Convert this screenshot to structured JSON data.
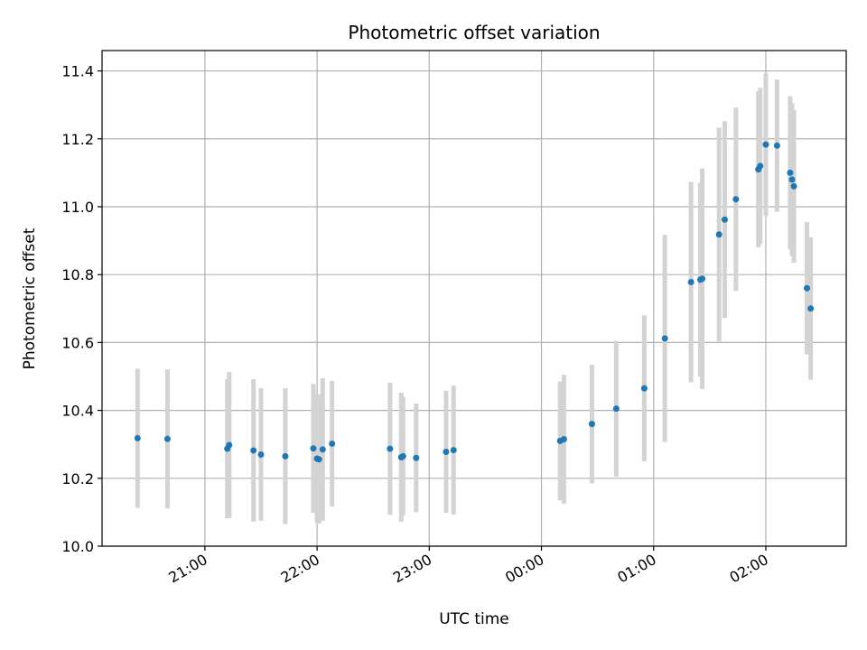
{
  "chart_data": {
    "type": "scatter",
    "title": "Photometric offset variation",
    "xlabel": "UTC time",
    "ylabel": "Photometric offset",
    "x_tick_labels": [
      "21:00",
      "22:00",
      "23:00",
      "00:00",
      "01:00",
      "02:00"
    ],
    "x_tick_times": [
      "2000-01-01T21:00",
      "2000-01-01T22:00",
      "2000-01-01T23:00",
      "2000-01-02T00:00",
      "2000-01-02T01:00",
      "2000-01-02T02:00"
    ],
    "xlim": [
      "2000-01-01T20:05",
      "2000-01-02T02:43"
    ],
    "y_ticks": [
      10.0,
      10.2,
      10.4,
      10.6,
      10.8,
      11.0,
      11.2,
      11.4
    ],
    "y_tick_labels": [
      "10.0",
      "10.2",
      "10.4",
      "10.6",
      "10.8",
      "11.0",
      "11.2",
      "11.4"
    ],
    "ylim": [
      10.0,
      11.46
    ],
    "grid": true,
    "point_color": "#1f77b4",
    "errorbar_color": "#d3d3d3",
    "points": [
      {
        "time": "2000-01-01T20:24",
        "y": 10.318,
        "err": 0.205
      },
      {
        "time": "2000-01-01T20:40",
        "y": 10.316,
        "err": 0.205
      },
      {
        "time": "2000-01-01T21:12",
        "y": 10.287,
        "err": 0.205
      },
      {
        "time": "2000-01-01T21:13",
        "y": 10.298,
        "err": 0.215
      },
      {
        "time": "2000-01-01T21:26",
        "y": 10.282,
        "err": 0.21
      },
      {
        "time": "2000-01-01T21:30",
        "y": 10.27,
        "err": 0.195
      },
      {
        "time": "2000-01-01T21:43",
        "y": 10.265,
        "err": 0.2
      },
      {
        "time": "2000-01-01T21:58",
        "y": 10.288,
        "err": 0.19
      },
      {
        "time": "2000-01-01T22:00",
        "y": 10.258,
        "err": 0.19
      },
      {
        "time": "2000-01-01T22:01",
        "y": 10.256,
        "err": 0.19
      },
      {
        "time": "2000-01-01T22:03",
        "y": 10.285,
        "err": 0.21
      },
      {
        "time": "2000-01-01T22:08",
        "y": 10.302,
        "err": 0.185
      },
      {
        "time": "2000-01-01T22:39",
        "y": 10.287,
        "err": 0.195
      },
      {
        "time": "2000-01-01T22:45",
        "y": 10.262,
        "err": 0.19
      },
      {
        "time": "2000-01-01T22:46",
        "y": 10.265,
        "err": 0.175
      },
      {
        "time": "2000-01-01T22:53",
        "y": 10.26,
        "err": 0.16
      },
      {
        "time": "2000-01-01T23:09",
        "y": 10.278,
        "err": 0.18
      },
      {
        "time": "2000-01-01T23:13",
        "y": 10.283,
        "err": 0.19
      },
      {
        "time": "2000-01-02T00:10",
        "y": 10.31,
        "err": 0.175
      },
      {
        "time": "2000-01-02T00:12",
        "y": 10.315,
        "err": 0.19
      },
      {
        "time": "2000-01-02T00:27",
        "y": 10.36,
        "err": 0.175
      },
      {
        "time": "2000-01-02T00:40",
        "y": 10.405,
        "err": 0.2
      },
      {
        "time": "2000-01-02T00:55",
        "y": 10.465,
        "err": 0.215
      },
      {
        "time": "2000-01-02T01:06",
        "y": 10.612,
        "err": 0.305
      },
      {
        "time": "2000-01-02T01:20",
        "y": 10.778,
        "err": 0.295
      },
      {
        "time": "2000-01-02T01:25",
        "y": 10.785,
        "err": 0.285
      },
      {
        "time": "2000-01-02T01:26",
        "y": 10.788,
        "err": 0.325
      },
      {
        "time": "2000-01-02T01:35",
        "y": 10.918,
        "err": 0.315
      },
      {
        "time": "2000-01-02T01:38",
        "y": 10.962,
        "err": 0.29
      },
      {
        "time": "2000-01-02T01:44",
        "y": 11.022,
        "err": 0.27
      },
      {
        "time": "2000-01-02T01:56",
        "y": 11.11,
        "err": 0.23
      },
      {
        "time": "2000-01-02T01:57",
        "y": 11.12,
        "err": 0.23
      },
      {
        "time": "2000-01-02T02:00",
        "y": 11.183,
        "err": 0.21
      },
      {
        "time": "2000-01-02T02:06",
        "y": 11.18,
        "err": 0.195
      },
      {
        "time": "2000-01-02T02:13",
        "y": 11.1,
        "err": 0.225
      },
      {
        "time": "2000-01-02T02:14",
        "y": 11.08,
        "err": 0.225
      },
      {
        "time": "2000-01-02T02:15",
        "y": 11.06,
        "err": 0.225
      },
      {
        "time": "2000-01-02T02:22",
        "y": 10.76,
        "err": 0.195
      },
      {
        "time": "2000-01-02T02:24",
        "y": 10.7,
        "err": 0.21
      }
    ]
  }
}
